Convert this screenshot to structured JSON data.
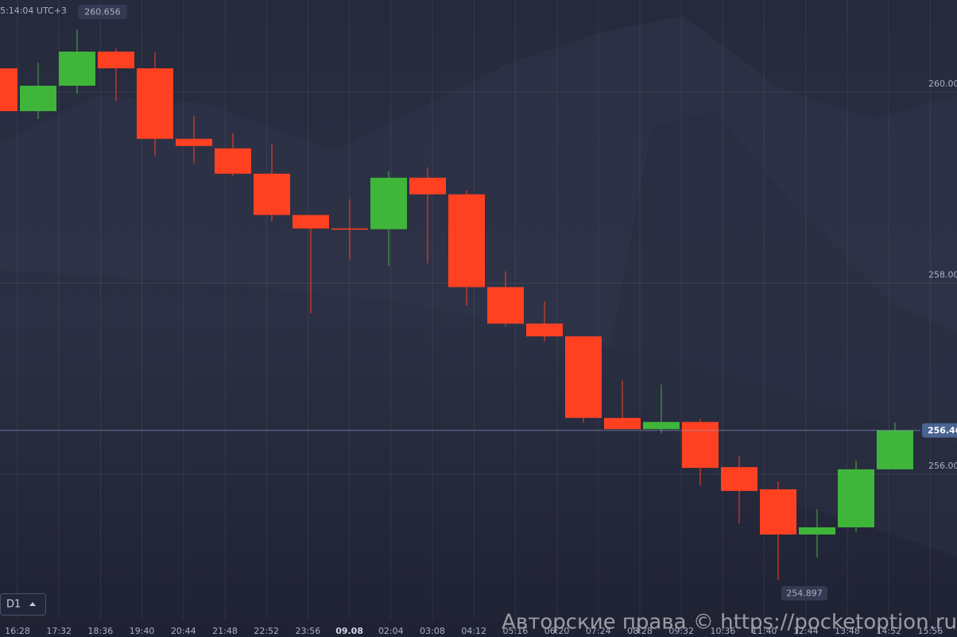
{
  "chart_data": {
    "type": "candlestick",
    "open": [
      260.249,
      259.801,
      260.067,
      260.424,
      260.249,
      259.511,
      259.411,
      259.146,
      258.714,
      258.573,
      258.565,
      259.104,
      258.93,
      257.959,
      257.577,
      257.444,
      256.59,
      256.473,
      256.548,
      256.075,
      255.843,
      255.37,
      255.445,
      256.052
    ],
    "high": [
      260.249,
      260.307,
      260.656,
      260.457,
      260.415,
      259.751,
      259.569,
      259.453,
      258.714,
      258.88,
      259.171,
      259.212,
      258.971,
      258.125,
      257.81,
      257.444,
      256.98,
      256.938,
      256.581,
      256.191,
      255.926,
      255.636,
      256.143,
      256.542
    ],
    "low": [
      259.801,
      259.718,
      259.984,
      259.909,
      259.337,
      259.254,
      259.121,
      258.648,
      257.685,
      258.249,
      258.183,
      258.208,
      257.768,
      257.544,
      257.395,
      256.54,
      256.473,
      256.432,
      255.884,
      255.486,
      254.897,
      255.129,
      255.395,
      256.052
    ],
    "close": [
      259.801,
      260.067,
      260.424,
      260.249,
      259.511,
      259.436,
      259.146,
      258.714,
      258.573,
      258.56,
      259.104,
      258.93,
      257.959,
      257.577,
      257.444,
      256.59,
      256.473,
      256.548,
      256.067,
      255.826,
      255.37,
      255.445,
      256.052,
      256.46
    ],
    "up_color": "#3fb63a",
    "down_color": "#ff4122",
    "ylim": [
      254.48,
      260.964
    ],
    "yticks": [
      {
        "value": 256,
        "label": "256.00"
      },
      {
        "value": 258,
        "label": "258.00"
      },
      {
        "value": 260,
        "label": "260.00"
      }
    ],
    "x_labels": [
      "16:28",
      "17:32",
      "18:36",
      "19:40",
      "20:44",
      "21:48",
      "22:52",
      "23:56",
      "09.08",
      "02:04",
      "03:08",
      "04:12",
      "05:16",
      "06:20",
      "07:24",
      "08:28",
      "09:32",
      "10:36",
      "11:40",
      "12:44",
      "13:48",
      "14:52",
      "15:56"
    ],
    "grid": true,
    "clock": "5:14:04 UTC+3",
    "timeframe": "D1",
    "watermark": "Авторские права © https://pocketoption.ru"
  }
}
